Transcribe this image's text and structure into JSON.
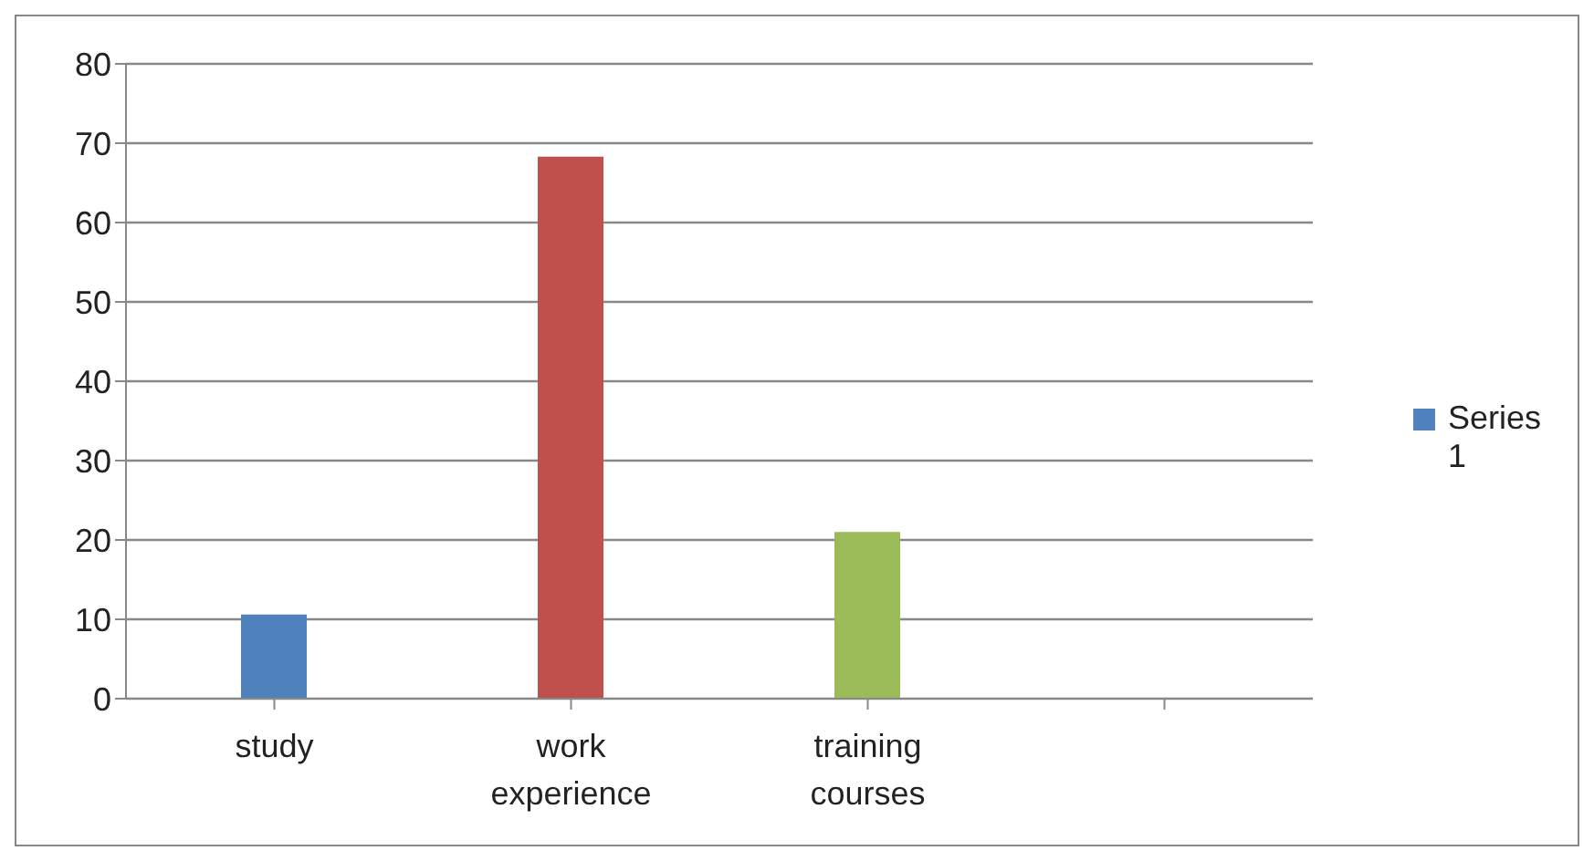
{
  "chart_data": {
    "type": "bar",
    "categories": [
      "study",
      "work experience",
      "training courses",
      null
    ],
    "series": [
      {
        "name": "Series 1",
        "color": "#4f81bd",
        "colors": [
          "#4f81bd",
          "#c0504d",
          "#9bbb59",
          "#4f81bd"
        ],
        "values": [
          10.6,
          68.3,
          21,
          null
        ]
      }
    ],
    "ylim": [
      0,
      80
    ],
    "yticks": [
      0,
      10,
      20,
      30,
      40,
      50,
      60,
      70,
      80
    ],
    "grid": "y",
    "legend": "right"
  }
}
